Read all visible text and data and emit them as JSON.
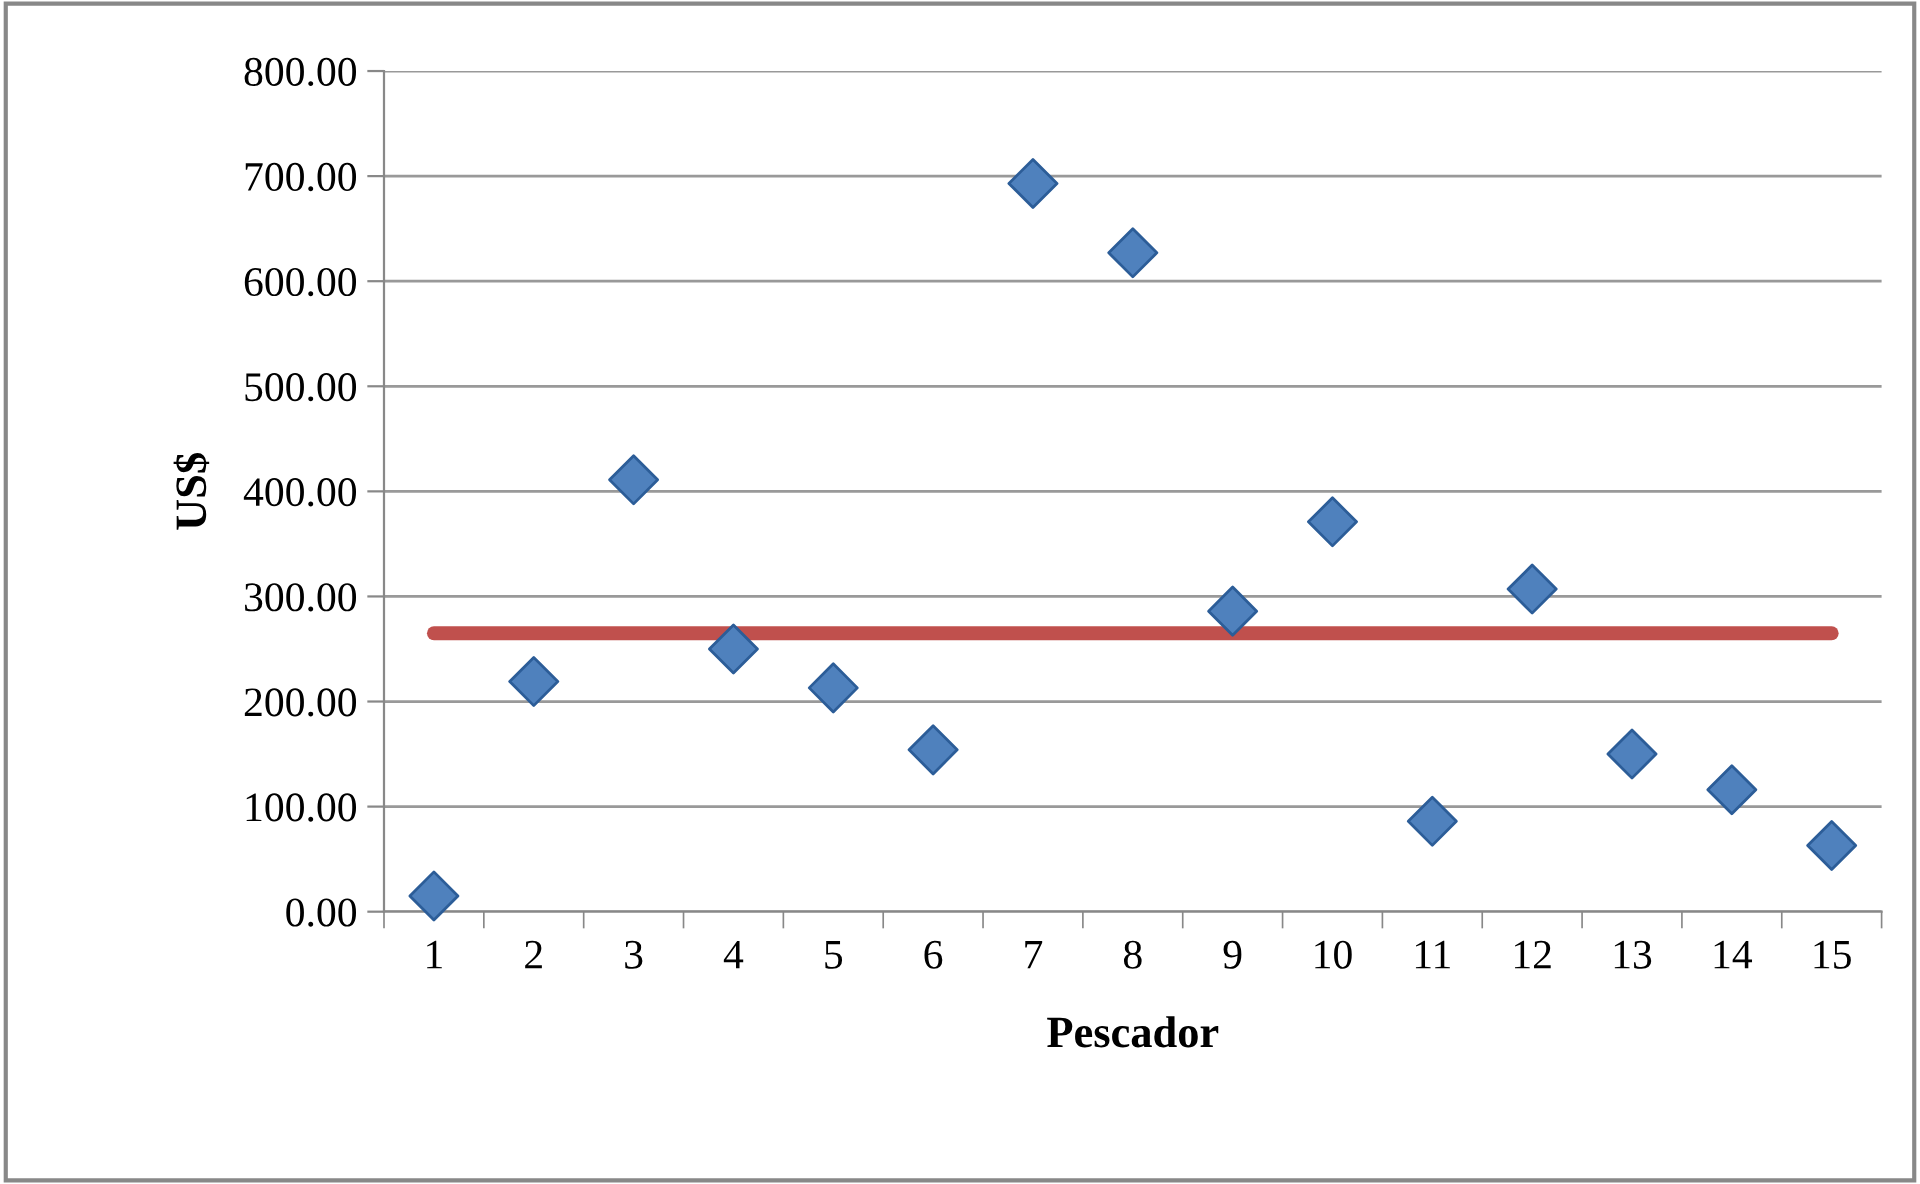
{
  "chart_data": {
    "type": "scatter",
    "xlabel": "Pescador",
    "ylabel": "US$",
    "categories": [
      "1",
      "2",
      "3",
      "4",
      "5",
      "6",
      "7",
      "8",
      "9",
      "10",
      "11",
      "12",
      "13",
      "14",
      "15"
    ],
    "series": [
      {
        "color": "#4f81bd",
        "marker": "diamond",
        "values": [
          15,
          219,
          411,
          250,
          213,
          154,
          693,
          627,
          286,
          371,
          86,
          307,
          150,
          116,
          63
        ]
      },
      {
        "type": "line",
        "color": "#c0504d",
        "marker": "none",
        "line_style": "solid",
        "values": [
          265,
          265,
          265,
          265,
          265,
          265,
          265,
          265,
          265,
          265,
          265,
          265,
          265,
          265,
          265
        ]
      }
    ],
    "ylim": [
      0,
      800
    ],
    "yticks": [
      {
        "value": 0,
        "label": "0.00"
      },
      {
        "value": 100,
        "label": "100.00"
      },
      {
        "value": 200,
        "label": "200.00"
      },
      {
        "value": 300,
        "label": "300.00"
      },
      {
        "value": 400,
        "label": "400.00"
      },
      {
        "value": 500,
        "label": "500.00"
      },
      {
        "value": 600,
        "label": "600.00"
      },
      {
        "value": 700,
        "label": "700.00"
      },
      {
        "value": 800,
        "label": "800.00"
      }
    ],
    "grid": "y",
    "legend": false
  }
}
